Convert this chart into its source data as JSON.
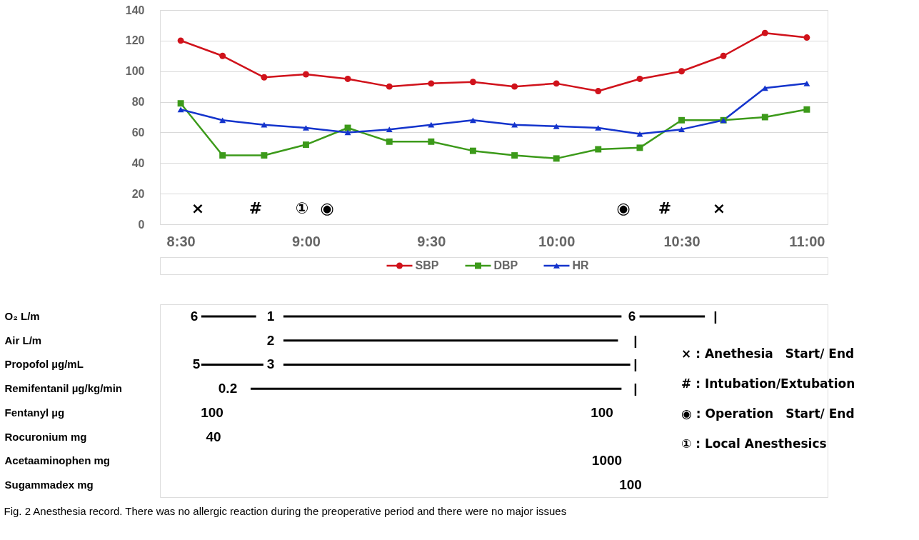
{
  "chart_data": [
    {
      "type": "line",
      "x": [
        8.5,
        8.667,
        8.833,
        9.0,
        9.167,
        9.333,
        9.5,
        9.667,
        9.833,
        10.0,
        10.167,
        10.333,
        10.5,
        10.667,
        10.833,
        11.0
      ],
      "series": [
        {
          "name": "SBP",
          "color": "#d0121b",
          "marker": "circle",
          "values": [
            120,
            110,
            96,
            98,
            95,
            90,
            92,
            93,
            90,
            92,
            87,
            95,
            100,
            110,
            125,
            122
          ]
        },
        {
          "name": "DBP",
          "color": "#3c9a1a",
          "marker": "square",
          "values": [
            79,
            45,
            45,
            52,
            63,
            54,
            54,
            48,
            45,
            43,
            49,
            50,
            68,
            68,
            70,
            75
          ]
        },
        {
          "name": "HR",
          "color": "#1434cc",
          "marker": "triangle",
          "values": [
            75,
            68,
            65,
            63,
            60,
            62,
            65,
            68,
            65,
            64,
            63,
            59,
            62,
            68,
            89,
            92
          ]
        }
      ],
      "xlim": [
        8.417,
        11.083
      ],
      "xticks": [
        {
          "value": 8.5,
          "label": "8:30"
        },
        {
          "value": 9.0,
          "label": "9:00"
        },
        {
          "value": 9.5,
          "label": "9:30"
        },
        {
          "value": 10.0,
          "label": "10:00"
        },
        {
          "value": 10.5,
          "label": "10:30"
        },
        {
          "value": 11.0,
          "label": "11:00"
        }
      ],
      "ylim": [
        0,
        140
      ],
      "yticks": [
        0,
        20,
        40,
        60,
        80,
        100,
        120,
        140
      ],
      "grid": "y",
      "legend": "bottom",
      "annotations": [
        "×",
        "#",
        "①",
        "◉",
        "◉",
        "#",
        "×"
      ]
    },
    {
      "type": "bar",
      "orientation": "horizontal",
      "tick_labels": "y",
      "categories": [
        "O₂  L/m",
        "Air  L/m",
        "Propofol µg/mL",
        "Remifentanil µg/kg/min",
        "Fentanyl      µg",
        "Rocuronium mg",
        "Acetaaminophen mg",
        "Sugammadex       mg"
      ],
      "xlim": [
        8.417,
        11.083
      ],
      "series": [
        {
          "color": "#000000",
          "base": [
            8.582,
            null,
            8.582,
            8.779,
            null,
            null,
            null,
            null
          ],
          "values": [
            0.219,
            null,
            0.248,
            1.481,
            null,
            null,
            null,
            null
          ]
        },
        {
          "color": "#000000",
          "base": [
            8.91,
            8.91,
            8.91,
            null,
            null,
            null,
            null,
            null
          ],
          "values": [
            1.35,
            1.336,
            1.385,
            null,
            null,
            null,
            null,
            null
          ]
        },
        {
          "color": "#000000",
          "base": [
            10.332,
            null,
            null,
            null,
            null,
            null,
            null,
            null
          ],
          "values": [
            0.261,
            null,
            null,
            null,
            null,
            null,
            null,
            null
          ]
        }
      ],
      "annotations": [
        "6",
        "1",
        "6",
        "|",
        "2",
        "|",
        "5",
        "3",
        "|",
        "0.2",
        "|",
        "100",
        "100",
        "40",
        "1000",
        "100",
        "× : Anethesia　Start/ End",
        "# : Intubation/Extubation",
        "◉ : Operation　Start/ End",
        "① : Local Anesthesics",
        "Fig. 2 Anesthesia record. There was no allergic reaction during the preoperative period and there were no major issues"
      ]
    }
  ]
}
